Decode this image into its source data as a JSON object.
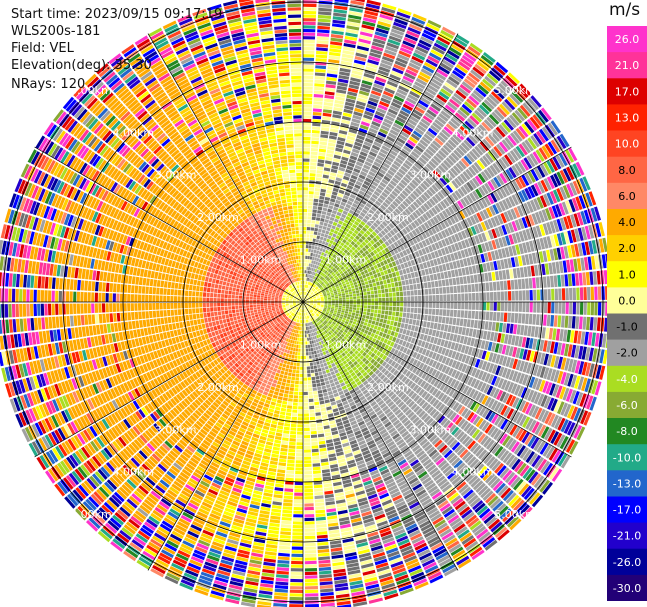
{
  "header": {
    "start_time": "Start time: 2023/09/15 09:17:19",
    "station": "WLS200s-181",
    "field": "Field: VEL",
    "elevation": "Elevation(deg): 35.30",
    "nrays": "NRays: 120"
  },
  "colorbar": {
    "unit": "m/s",
    "levels": [
      "26.0",
      "21.0",
      "17.0",
      "13.0",
      "10.0",
      "8.0",
      "6.0",
      "4.0",
      "2.0",
      "1.0",
      "0.0",
      "-1.0",
      "-2.0",
      "-4.0",
      "-6.0",
      "-8.0",
      "-10.0",
      "-13.0",
      "-17.0",
      "-21.0",
      "-26.0",
      "-30.0"
    ],
    "colors": [
      "#ff33cc",
      "#ff3399",
      "#dd0000",
      "#ff2200",
      "#ff4422",
      "#ff6644",
      "#ff8866",
      "#ffaa00",
      "#ffd000",
      "#ffff00",
      "#ffff99",
      "#707070",
      "#a0a0a0",
      "#aadd22",
      "#88aa33",
      "#228822",
      "#22aa88",
      "#2266cc",
      "#0000ff",
      "#2200cc",
      "#000099",
      "#220077"
    ]
  },
  "chart_data": {
    "type": "heatmap",
    "title": "",
    "field": "VEL",
    "units": "m/s",
    "nrays": 120,
    "elevation_deg": 35.3,
    "range_rings_km": [
      1.0,
      2.0,
      3.0,
      4.0,
      5.0
    ],
    "ring_labels": {
      "1": "1.00km",
      "2": "2.00km",
      "3": "3.00km",
      "4": "4.00km",
      "5": "5.00km"
    },
    "azimuth_lines_deg": [
      0,
      30,
      60,
      90,
      120,
      150,
      180,
      210,
      240,
      270,
      300,
      330
    ],
    "color_scale": {
      "min": -30.0,
      "max": 26.0,
      "ticks": [
        26.0,
        21.0,
        17.0,
        13.0,
        10.0,
        8.0,
        6.0,
        4.0,
        2.0,
        1.0,
        0.0,
        -1.0,
        -2.0,
        -4.0,
        -6.0,
        -8.0,
        -10.0,
        -13.0,
        -17.0,
        -21.0,
        -26.0,
        -30.0
      ]
    },
    "pattern": {
      "west_sector_m_s": 3.0,
      "east_sector_m_s": -3.0,
      "core_west_m_s": 7.5,
      "core_east_m_s": -6.0,
      "noise_beyond_km": 4.0
    }
  }
}
